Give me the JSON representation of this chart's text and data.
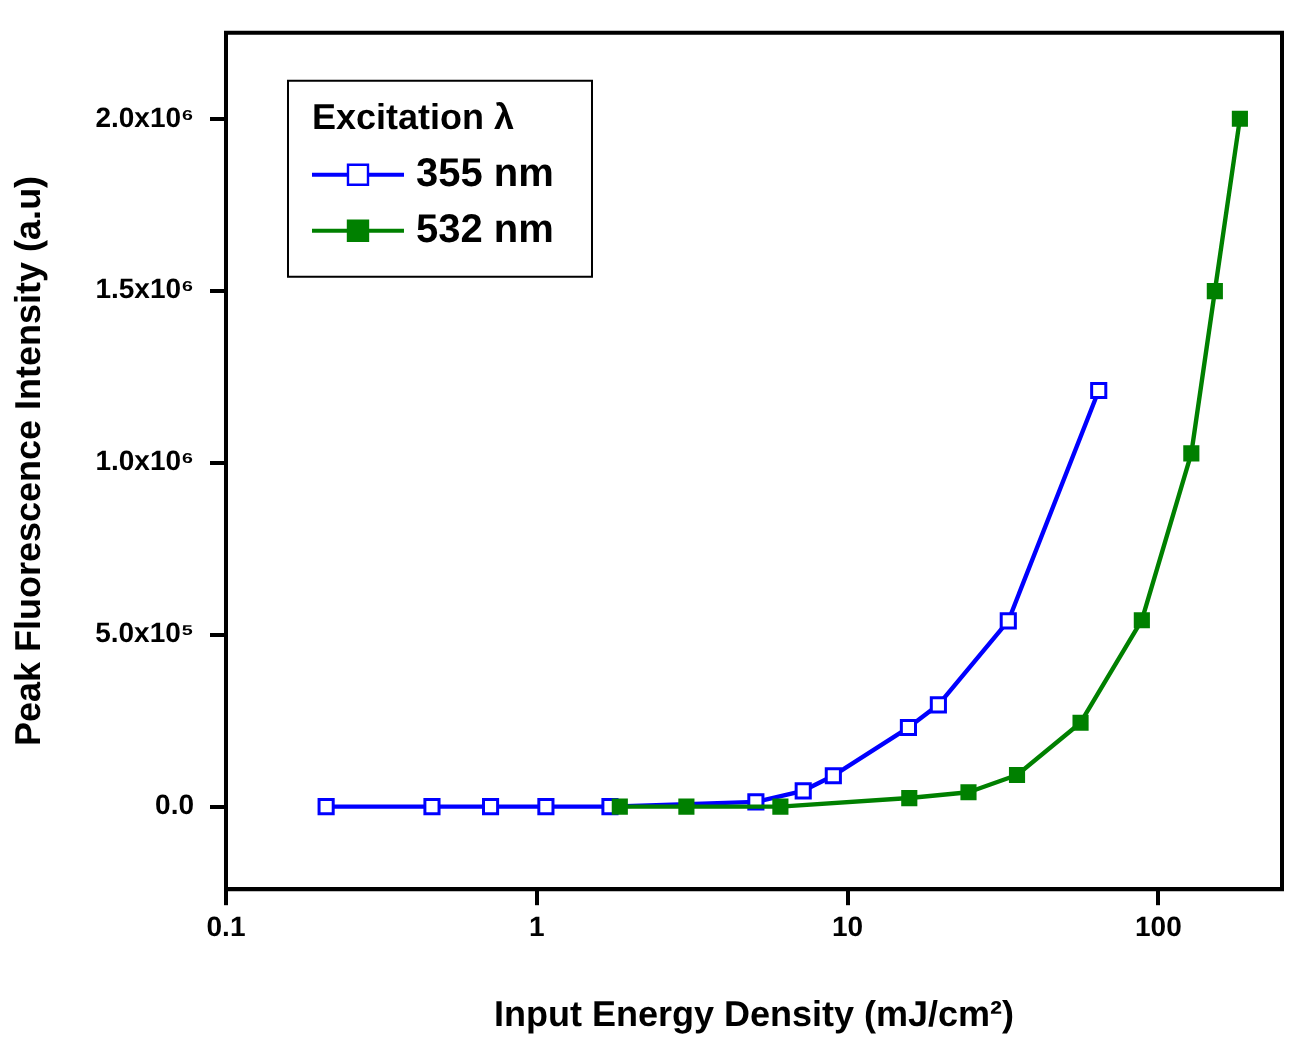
{
  "chart_data": {
    "type": "line",
    "xlabel": "Input Energy Density (mJ/cm²)",
    "ylabel": "Peak Fluorescence Intensity (a.u)",
    "legend_title": "Excitation λ",
    "legend": "top left",
    "log": "x",
    "marker": "square",
    "grid": false,
    "xlim": [
      0.1,
      250
    ],
    "xticks": [
      0.1,
      1,
      10,
      100
    ],
    "ylim": [
      -240000,
      2250000
    ],
    "yticks": [
      {
        "value": 0,
        "label": "0.0"
      },
      {
        "value": 500000,
        "label": "5.0x10⁵"
      },
      {
        "value": 1000000,
        "label": "1.0x10⁶"
      },
      {
        "value": 1500000,
        "label": "1.5x10⁶"
      },
      {
        "value": 2000000,
        "label": "2.0x10⁶"
      }
    ],
    "series": [
      {
        "name": "355 nm",
        "color": "#0000ff",
        "x": [
          0.21,
          0.46,
          0.71,
          1.07,
          1.72,
          5.07,
          7.2,
          9.0,
          15.7,
          19.6,
          32.9,
          64.3
        ],
        "values": [
          0,
          0,
          0,
          0,
          0,
          14000,
          46000,
          90000,
          230000,
          296000,
          540000,
          1210000
        ]
      },
      {
        "name": "532 nm",
        "color": "#008000",
        "x": [
          1.85,
          3.03,
          6.08,
          15.8,
          24.5,
          35.1,
          56.2,
          88.5,
          127.7,
          152,
          183
        ],
        "values": [
          0,
          0,
          0,
          25000,
          42000,
          92000,
          244000,
          542000,
          1027000,
          1499000,
          2000000
        ]
      }
    ]
  }
}
